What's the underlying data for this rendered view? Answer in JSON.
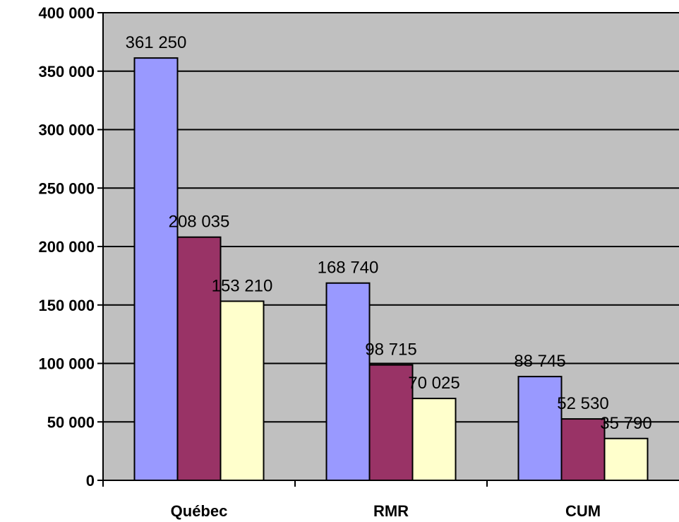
{
  "chart_data": {
    "type": "bar",
    "categories": [
      "Québec",
      "RMR",
      "CUM"
    ],
    "series": [
      {
        "values": [
          361250,
          168740,
          88745
        ],
        "color": "#9999ff"
      },
      {
        "values": [
          208035,
          98715,
          52530
        ],
        "color": "#993366"
      },
      {
        "values": [
          153210,
          70025,
          35790
        ],
        "color": "#ffffcc"
      }
    ],
    "data_labels": [
      [
        "361 250",
        "168 740",
        "88 745"
      ],
      [
        "208 035",
        "98 715",
        "52 530"
      ],
      [
        "153 210",
        "70 025",
        "35 790"
      ]
    ],
    "yticks": [
      0,
      50000,
      100000,
      150000,
      200000,
      250000,
      300000,
      350000,
      400000
    ],
    "ytick_labels": [
      "0",
      "50 000",
      "100 000",
      "150 000",
      "200 000",
      "250 000",
      "300 000",
      "350 000",
      "400 000"
    ],
    "ylim": [
      0,
      400000
    ],
    "grid": true,
    "legend": false,
    "plot_background": "#c0c0c0"
  }
}
